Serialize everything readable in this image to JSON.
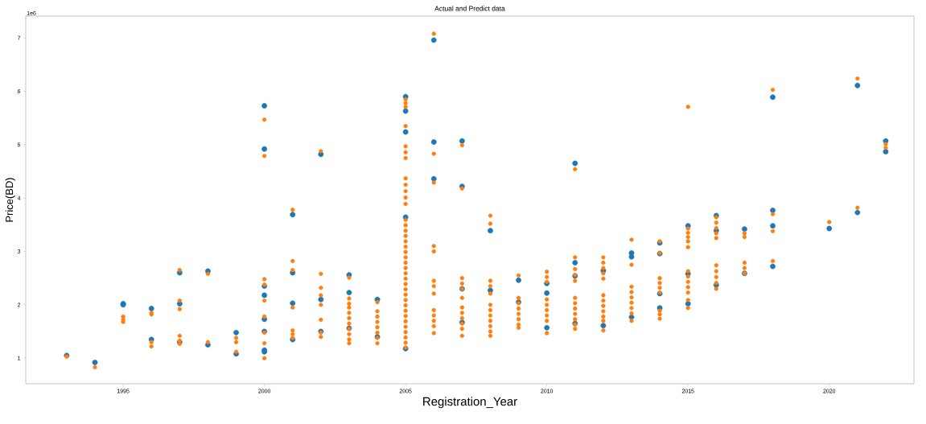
{
  "chart_data": {
    "type": "scatter",
    "title": "Actual and Predict data",
    "xlabel": "Registration_Year",
    "ylabel": "Price(BD)",
    "annotations": [
      "1e6"
    ],
    "marker": "circle",
    "xlim": [
      1991.55,
      2023.0
    ],
    "ylim": [
      0.52,
      7.41
    ],
    "xticks": [
      1995,
      2000,
      2005,
      2010,
      2015,
      2020
    ],
    "yticks": [
      1,
      2,
      3,
      4,
      5,
      6,
      7
    ],
    "series": [
      {
        "color": "#1f77b4",
        "x": [
          1993,
          1994,
          1995,
          1995,
          1996,
          1996,
          1997,
          1997,
          1997,
          1998,
          1998,
          1999,
          1999,
          2000,
          2000,
          2000,
          2000,
          2000,
          2000,
          2000,
          2000,
          2001,
          2001,
          2001,
          2001,
          2002,
          2002,
          2002,
          2003,
          2003,
          2003,
          2004,
          2004,
          2005,
          2005,
          2005,
          2005,
          2005,
          2006,
          2006,
          2006,
          2007,
          2007,
          2007,
          2007,
          2008,
          2008,
          2009,
          2009,
          2010,
          2010,
          2010,
          2011,
          2011,
          2011,
          2011,
          2012,
          2012,
          2013,
          2013,
          2013,
          2014,
          2014,
          2014,
          2014,
          2015,
          2015,
          2015,
          2016,
          2016,
          2016,
          2017,
          2017,
          2018,
          2018,
          2018,
          2018,
          2020,
          2021,
          2021,
          2022,
          2022
        ],
        "values": [
          1.05,
          0.92,
          2.02,
          2.0,
          1.93,
          1.35,
          2.6,
          2.02,
          1.3,
          2.63,
          1.25,
          1.48,
          1.08,
          5.73,
          4.92,
          2.35,
          2.18,
          1.73,
          1.5,
          1.15,
          1.12,
          3.69,
          2.6,
          2.03,
          1.35,
          4.82,
          2.1,
          1.5,
          2.56,
          2.23,
          1.56,
          2.1,
          1.4,
          5.9,
          5.63,
          5.24,
          3.64,
          1.18,
          6.96,
          5.05,
          4.36,
          5.07,
          4.22,
          2.3,
          1.67,
          3.39,
          2.27,
          2.46,
          2.05,
          2.4,
          2.22,
          1.57,
          4.65,
          2.79,
          2.54,
          1.65,
          2.64,
          1.61,
          2.97,
          2.9,
          1.77,
          3.16,
          2.96,
          2.21,
          1.94,
          3.48,
          2.58,
          2.02,
          3.67,
          3.39,
          2.37,
          3.42,
          2.59,
          5.89,
          3.77,
          3.48,
          2.72,
          3.43,
          6.11,
          3.73,
          5.07,
          4.87
        ]
      },
      {
        "color": "#ff7f0e",
        "x": [
          1993,
          1994,
          1995,
          1995,
          1995,
          1996,
          1996,
          1996,
          1996,
          1997,
          1997,
          1997,
          1997,
          1997,
          1997,
          1998,
          1998,
          1999,
          1999,
          1999,
          2000,
          2000,
          2000,
          2000,
          2000,
          2000,
          2000,
          2000,
          2000,
          2001,
          2001,
          2001,
          2001,
          2001,
          2001,
          2001,
          2002,
          2002,
          2002,
          2002,
          2002,
          2002,
          2002,
          2002,
          2003,
          2003,
          2003,
          2003,
          2003,
          2003,
          2003,
          2003,
          2003,
          2003,
          2003,
          2004,
          2004,
          2004,
          2004,
          2004,
          2004,
          2004,
          2004,
          2005,
          2005,
          2005,
          2005,
          2005,
          2005,
          2005,
          2005,
          2005,
          2005,
          2005,
          2005,
          2005,
          2005,
          2005,
          2005,
          2005,
          2005,
          2005,
          2005,
          2005,
          2005,
          2005,
          2005,
          2005,
          2005,
          2005,
          2005,
          2005,
          2005,
          2005,
          2005,
          2005,
          2005,
          2005,
          2005,
          2005,
          2006,
          2006,
          2006,
          2006,
          2006,
          2006,
          2006,
          2006,
          2006,
          2006,
          2006,
          2006,
          2006,
          2007,
          2007,
          2007,
          2007,
          2007,
          2007,
          2007,
          2007,
          2007,
          2007,
          2007,
          2007,
          2008,
          2008,
          2008,
          2008,
          2008,
          2008,
          2008,
          2008,
          2008,
          2008,
          2008,
          2008,
          2009,
          2009,
          2009,
          2009,
          2009,
          2009,
          2009,
          2009,
          2010,
          2010,
          2010,
          2010,
          2010,
          2010,
          2010,
          2010,
          2010,
          2011,
          2011,
          2011,
          2011,
          2011,
          2011,
          2011,
          2011,
          2011,
          2011,
          2011,
          2011,
          2012,
          2012,
          2012,
          2012,
          2012,
          2012,
          2012,
          2012,
          2012,
          2012,
          2012,
          2012,
          2013,
          2013,
          2013,
          2013,
          2013,
          2013,
          2013,
          2013,
          2013,
          2014,
          2014,
          2014,
          2014,
          2014,
          2014,
          2014,
          2014,
          2014,
          2015,
          2015,
          2015,
          2015,
          2015,
          2015,
          2015,
          2015,
          2015,
          2015,
          2015,
          2015,
          2015,
          2016,
          2016,
          2016,
          2016,
          2016,
          2016,
          2016,
          2016,
          2016,
          2016,
          2017,
          2017,
          2017,
          2017,
          2017,
          2018,
          2018,
          2018,
          2018,
          2020,
          2021,
          2021,
          2022,
          2022
        ],
        "values": [
          1.03,
          0.83,
          1.78,
          1.72,
          1.68,
          1.85,
          1.82,
          1.3,
          1.22,
          2.65,
          2.08,
          1.92,
          1.42,
          1.33,
          1.27,
          2.58,
          1.3,
          1.38,
          1.3,
          1.12,
          5.47,
          4.79,
          2.48,
          2.38,
          2.08,
          1.78,
          1.48,
          1.28,
          1.0,
          3.78,
          2.82,
          2.65,
          1.95,
          1.52,
          1.45,
          1.38,
          4.88,
          2.58,
          2.32,
          2.18,
          2.0,
          1.72,
          1.48,
          1.4,
          2.51,
          2.12,
          2.02,
          1.95,
          1.85,
          1.75,
          1.65,
          1.55,
          1.45,
          1.35,
          1.28,
          2.05,
          1.88,
          1.78,
          1.68,
          1.58,
          1.48,
          1.38,
          1.28,
          5.85,
          5.78,
          5.71,
          5.35,
          4.97,
          4.86,
          4.75,
          4.37,
          4.25,
          4.13,
          4.01,
          3.89,
          3.59,
          3.49,
          3.39,
          3.29,
          3.19,
          3.09,
          2.99,
          2.89,
          2.79,
          2.69,
          2.59,
          2.49,
          2.39,
          2.29,
          2.19,
          2.09,
          1.99,
          1.89,
          1.79,
          1.69,
          1.59,
          1.49,
          1.39,
          1.29,
          1.2,
          7.08,
          4.83,
          4.29,
          3.1,
          3.0,
          2.45,
          2.35,
          2.21,
          1.9,
          1.8,
          1.7,
          1.6,
          1.47,
          4.99,
          4.18,
          2.5,
          2.4,
          2.3,
          2.13,
          1.95,
          1.85,
          1.75,
          1.65,
          1.55,
          1.42,
          3.67,
          3.52,
          2.45,
          2.35,
          2.21,
          2.0,
          1.9,
          1.8,
          1.7,
          1.6,
          1.5,
          1.42,
          2.55,
          2.13,
          2.03,
          1.93,
          1.83,
          1.73,
          1.63,
          1.57,
          2.62,
          2.52,
          2.43,
          2.1,
          2.0,
          1.9,
          1.8,
          1.7,
          1.47,
          4.54,
          2.89,
          2.67,
          2.56,
          2.45,
          2.13,
          2.03,
          1.93,
          1.83,
          1.73,
          1.63,
          1.55,
          2.89,
          2.79,
          2.69,
          2.59,
          2.49,
          2.18,
          2.08,
          1.98,
          1.88,
          1.78,
          1.7,
          1.52,
          3.22,
          2.75,
          2.34,
          2.24,
          2.14,
          2.04,
          1.94,
          1.84,
          1.7,
          3.19,
          2.97,
          2.5,
          2.41,
          2.32,
          2.23,
          1.89,
          1.82,
          1.74,
          5.71,
          3.43,
          3.35,
          3.27,
          3.19,
          3.08,
          2.63,
          2.53,
          2.43,
          2.33,
          2.23,
          2.09,
          1.94,
          3.64,
          3.54,
          3.44,
          3.34,
          3.25,
          2.74,
          2.63,
          2.52,
          2.41,
          2.3,
          3.34,
          3.27,
          2.79,
          2.69,
          2.59,
          6.03,
          3.7,
          3.38,
          2.82,
          3.55,
          6.24,
          3.82,
          5.01,
          4.94
        ]
      }
    ]
  }
}
